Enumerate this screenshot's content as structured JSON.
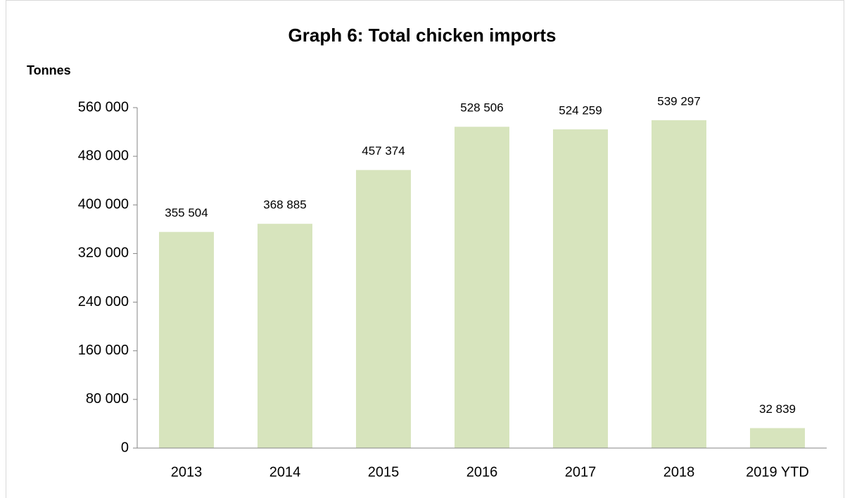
{
  "chart_data": {
    "type": "bar",
    "title": "Graph 6: Total chicken imports",
    "ylabel": "Tonnes",
    "categories": [
      "2013",
      "2014",
      "2015",
      "2016",
      "2017",
      "2018",
      "2019 YTD"
    ],
    "values": [
      355504,
      368885,
      457374,
      528506,
      524259,
      539297,
      32839
    ],
    "value_labels": [
      "355 504",
      "368 885",
      "457 374",
      "528 506",
      "524 259",
      "539 297",
      "32 839"
    ],
    "color": "#d7e4bd",
    "ylim": [
      0,
      560000
    ],
    "yticks": [
      {
        "value": 0,
        "label": "0"
      },
      {
        "value": 80000,
        "label": "80 000"
      },
      {
        "value": 160000,
        "label": "160 000"
      },
      {
        "value": 240000,
        "label": "240 000"
      },
      {
        "value": 320000,
        "label": "320 000"
      },
      {
        "value": 400000,
        "label": "400 000"
      },
      {
        "value": 480000,
        "label": "480 000"
      },
      {
        "value": 560000,
        "label": "560 000"
      }
    ],
    "grid": false
  }
}
